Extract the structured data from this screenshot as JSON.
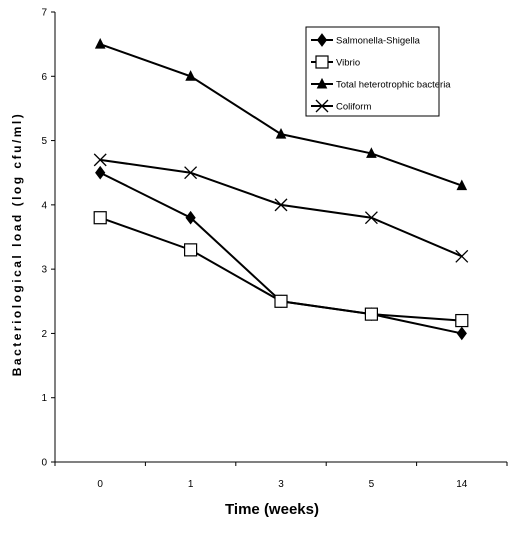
{
  "chart_data": {
    "type": "line",
    "title": "",
    "xlabel": "Time (weeks)",
    "ylabel": "Bacteriological load (log cfu/ml)",
    "categories": [
      "0",
      "1",
      "3",
      "5",
      "14"
    ],
    "ylim": [
      0,
      7
    ],
    "yticks": [
      "0",
      "1",
      "2",
      "3",
      "4",
      "5",
      "6",
      "7"
    ],
    "grid": false,
    "legend_position": "top-right",
    "series": [
      {
        "name": "Salmonella-Shigella",
        "marker": "diamond-filled",
        "color": "#000000",
        "values": [
          4.5,
          3.8,
          2.5,
          2.3,
          2.0
        ]
      },
      {
        "name": "Vibrio",
        "marker": "square-open",
        "color": "#000000",
        "values": [
          3.8,
          3.3,
          2.5,
          2.3,
          2.2
        ]
      },
      {
        "name": "Total heterotrophic bacteria",
        "marker": "triangle-filled",
        "color": "#000000",
        "values": [
          6.5,
          6.0,
          5.1,
          4.8,
          4.3
        ]
      },
      {
        "name": "Coliform",
        "marker": "x",
        "color": "#000000",
        "values": [
          4.7,
          4.5,
          4.0,
          3.8,
          3.2
        ]
      }
    ]
  }
}
